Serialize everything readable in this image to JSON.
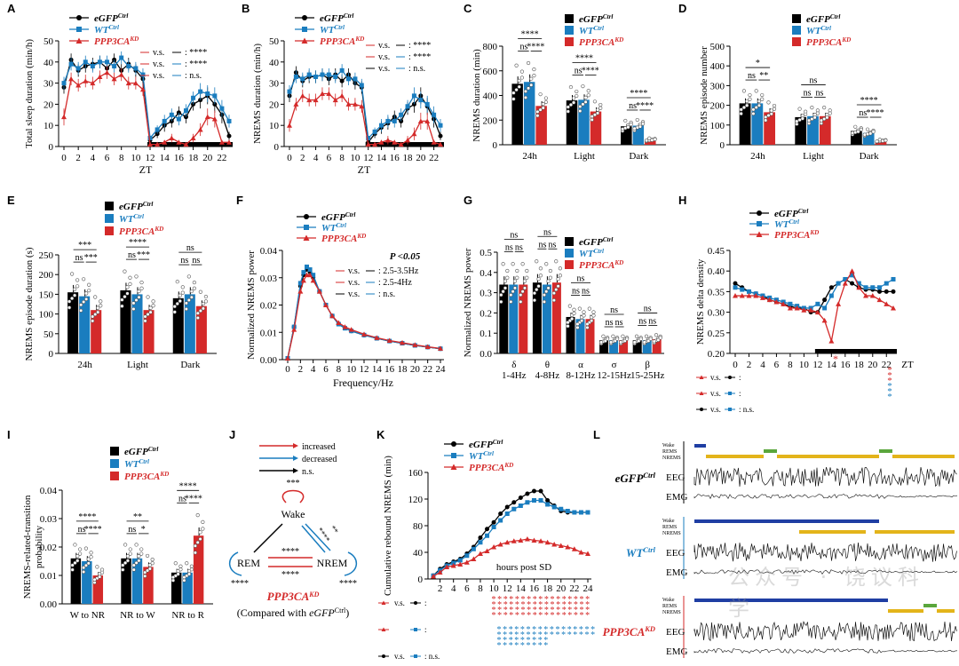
{
  "colors": {
    "egfp": "#000000",
    "wt": "#1a7dbf",
    "ppp": "#d42a2a",
    "wake": "#1f3ea3",
    "rems": "#5aa63c",
    "nrems": "#e3b41a"
  },
  "groups": [
    "eGFP",
    "WT",
    "PPP3CA"
  ],
  "group_sup": [
    "Ctrl",
    "Ctrl",
    "KD"
  ],
  "zt_ticks": [
    "0",
    "2",
    "4",
    "6",
    "8",
    "10",
    "12",
    "14",
    "16",
    "18",
    "20",
    "22"
  ],
  "zt_label": "ZT",
  "panel_letters": [
    "A",
    "B",
    "C",
    "D",
    "E",
    "F",
    "G",
    "H",
    "I",
    "J",
    "K",
    "L"
  ],
  "stats": {
    "a": [
      "v.s.",
      ":",
      "****",
      "v.s.",
      ":",
      "****",
      "v.s.",
      ":",
      "n.s."
    ],
    "f_p": "P <0.05",
    "f": [
      "v.s.",
      ": 2.5-3.5Hz",
      "v.s.",
      ": 2.5-4Hz",
      "v.s.",
      ": n.s."
    ],
    "h_star": "*",
    "k_nsd": "n.s."
  },
  "j_diagram": {
    "legend": [
      "increased",
      "decreased",
      "n.s."
    ],
    "nodes": [
      "Wake",
      "REM",
      "NREM"
    ],
    "stars": [
      "***",
      "****",
      "****",
      "****",
      "**",
      "****",
      "****"
    ],
    "title": "PPP3CA",
    "title_sup": "KD",
    "note_pre": "(Compared with ",
    "note_grp": "eGFP",
    "note_sup": "Ctrl",
    "note_post": ")"
  },
  "l_traces": {
    "stage_labels": [
      "Wake",
      "REMS",
      "NREMS"
    ],
    "eeg": "EEG",
    "emg": "EMG"
  },
  "watermark": "公众号 · 饶议科学",
  "chart_data": [
    {
      "panel": "A",
      "type": "line",
      "ylabel": "Total sleep duration (min/h)",
      "xlabel": "ZT",
      "ylim": [
        0,
        50
      ],
      "yticks": [
        0,
        10,
        20,
        30,
        40,
        50
      ],
      "x": [
        0,
        1,
        2,
        3,
        4,
        5,
        6,
        7,
        8,
        9,
        10,
        11,
        12,
        13,
        14,
        15,
        16,
        17,
        18,
        19,
        20,
        21,
        22,
        23
      ],
      "series": [
        {
          "name": "eGFP",
          "values": [
            28,
            41,
            36,
            38,
            39,
            40,
            37,
            41,
            36,
            39,
            36,
            32,
            3,
            6,
            10,
            12,
            16,
            14,
            20,
            22,
            24,
            20,
            15,
            5
          ],
          "err": [
            3,
            3,
            3,
            3,
            3,
            3,
            3,
            3,
            3,
            3,
            3,
            3,
            1,
            2,
            3,
            3,
            3,
            3,
            3,
            4,
            4,
            4,
            4,
            2
          ]
        },
        {
          "name": "WT",
          "values": [
            30,
            39,
            37,
            40,
            38,
            40,
            40,
            38,
            42,
            38,
            37,
            34,
            4,
            8,
            12,
            15,
            13,
            17,
            23,
            26,
            25,
            24,
            18,
            12
          ],
          "err": [
            3,
            3,
            3,
            3,
            3,
            3,
            3,
            3,
            3,
            3,
            3,
            3,
            1,
            2,
            3,
            3,
            3,
            3,
            3,
            4,
            4,
            4,
            4,
            3
          ]
        },
        {
          "name": "PPP3CA",
          "values": [
            14,
            32,
            29,
            31,
            30,
            33,
            35,
            32,
            34,
            30,
            30,
            27,
            1,
            1,
            2,
            4,
            2,
            1,
            4,
            8,
            14,
            13,
            2,
            2
          ],
          "err": [
            4,
            3,
            3,
            3,
            3,
            3,
            3,
            3,
            3,
            3,
            3,
            3,
            1,
            1,
            1,
            2,
            1,
            1,
            2,
            3,
            4,
            4,
            1,
            1
          ]
        }
      ]
    },
    {
      "panel": "B",
      "type": "line",
      "ylabel": "NREMS duration (min/h)",
      "xlabel": "ZT",
      "ylim": [
        0,
        50
      ],
      "yticks": [
        0,
        10,
        20,
        30,
        40,
        50
      ],
      "x": [
        0,
        1,
        2,
        3,
        4,
        5,
        6,
        7,
        8,
        9,
        10,
        11,
        12,
        13,
        14,
        15,
        16,
        17,
        18,
        19,
        20,
        21,
        22,
        23
      ],
      "series": [
        {
          "name": "eGFP",
          "values": [
            24,
            35,
            31,
            33,
            33,
            34,
            32,
            34,
            31,
            34,
            30,
            28,
            2,
            6,
            9,
            11,
            14,
            12,
            18,
            20,
            24,
            19,
            13,
            5
          ],
          "err": [
            3,
            3,
            3,
            3,
            3,
            3,
            3,
            3,
            3,
            3,
            3,
            3,
            1,
            2,
            3,
            3,
            3,
            3,
            3,
            4,
            4,
            4,
            4,
            2
          ]
        },
        {
          "name": "WT",
          "values": [
            26,
            33,
            32,
            34,
            33,
            34,
            34,
            33,
            36,
            32,
            32,
            29,
            4,
            7,
            10,
            12,
            12,
            15,
            19,
            24,
            22,
            20,
            15,
            10
          ],
          "err": [
            3,
            3,
            3,
            3,
            3,
            3,
            3,
            3,
            3,
            3,
            3,
            3,
            1,
            2,
            3,
            3,
            3,
            3,
            3,
            4,
            4,
            4,
            4,
            3
          ]
        },
        {
          "name": "PPP3CA",
          "values": [
            10,
            20,
            24,
            22,
            22,
            25,
            25,
            22,
            24,
            20,
            20,
            19,
            1,
            1,
            2,
            3,
            2,
            1,
            3,
            6,
            12,
            12,
            2,
            1
          ],
          "err": [
            3,
            3,
            3,
            3,
            3,
            3,
            3,
            3,
            3,
            3,
            3,
            3,
            1,
            1,
            1,
            2,
            1,
            1,
            2,
            3,
            4,
            4,
            1,
            1
          ]
        }
      ]
    },
    {
      "panel": "C",
      "type": "bar",
      "ylabel": "NREMS duration (min)",
      "categories": [
        "24h",
        "Light",
        "Dark"
      ],
      "ylim": [
        0,
        800
      ],
      "yticks": [
        0,
        200,
        400,
        600,
        800
      ],
      "series": [
        {
          "name": "eGFP",
          "values": [
            495,
            360,
            150
          ]
        },
        {
          "name": "WT",
          "values": [
            510,
            365,
            155
          ]
        },
        {
          "name": "PPP3CA",
          "values": [
            315,
            270,
            40
          ]
        }
      ],
      "sig": [
        [
          "****",
          "ns",
          "****"
        ],
        [
          "****",
          "ns",
          "****"
        ],
        [
          "****",
          "ns",
          "****"
        ]
      ]
    },
    {
      "panel": "D",
      "type": "bar",
      "ylabel": "NREMS episode number",
      "categories": [
        "24h",
        "Light",
        "Dark"
      ],
      "ylim": [
        0,
        500
      ],
      "yticks": [
        0,
        100,
        200,
        300,
        400,
        500
      ],
      "series": [
        {
          "name": "eGFP",
          "values": [
            210,
            140,
            70
          ]
        },
        {
          "name": "WT",
          "values": [
            210,
            145,
            60
          ]
        },
        {
          "name": "PPP3CA",
          "values": [
            165,
            145,
            20
          ]
        }
      ],
      "sig": [
        [
          "*",
          "ns",
          "**"
        ],
        [
          "ns",
          "ns",
          "ns"
        ],
        [
          "****",
          "ns",
          "****"
        ]
      ]
    },
    {
      "panel": "E",
      "type": "bar",
      "ylabel": "NREMS episode duration (s)",
      "categories": [
        "24h",
        "Light",
        "Dark"
      ],
      "ylim": [
        0,
        250
      ],
      "yticks": [
        0,
        50,
        100,
        150,
        200,
        250
      ],
      "series": [
        {
          "name": "eGFP",
          "values": [
            155,
            160,
            140
          ]
        },
        {
          "name": "WT",
          "values": [
            145,
            150,
            150
          ]
        },
        {
          "name": "PPP3CA",
          "values": [
            110,
            110,
            120
          ]
        }
      ],
      "sig": [
        [
          "***",
          "ns",
          "***"
        ],
        [
          "****",
          "ns",
          "***"
        ],
        [
          "ns",
          "ns",
          "ns"
        ]
      ]
    },
    {
      "panel": "F",
      "type": "line",
      "ylabel": "Normalized NREMS power",
      "xlabel": "Frequency/Hz",
      "ylim": [
        0,
        0.04
      ],
      "yticks": [
        0.0,
        0.01,
        0.02,
        0.03,
        0.04
      ],
      "xticks": [
        0,
        2,
        4,
        6,
        8,
        10,
        12,
        14,
        16,
        18,
        20,
        22,
        24
      ],
      "x": [
        0,
        1,
        2,
        2.5,
        3,
        3.5,
        4,
        5,
        6,
        7,
        8,
        9,
        10,
        12,
        14,
        16,
        18,
        20,
        22,
        24
      ],
      "series": [
        {
          "name": "eGFP",
          "values": [
            0.0005,
            0.012,
            0.027,
            0.031,
            0.033,
            0.032,
            0.03,
            0.025,
            0.02,
            0.016,
            0.013,
            0.0115,
            0.0105,
            0.009,
            0.0078,
            0.0068,
            0.006,
            0.0052,
            0.0046,
            0.004
          ]
        },
        {
          "name": "WT",
          "values": [
            0.0005,
            0.012,
            0.028,
            0.032,
            0.034,
            0.033,
            0.031,
            0.025,
            0.02,
            0.016,
            0.013,
            0.0115,
            0.0105,
            0.009,
            0.0078,
            0.0068,
            0.006,
            0.0052,
            0.0046,
            0.004
          ]
        },
        {
          "name": "PPP3CA",
          "values": [
            0.0005,
            0.011,
            0.025,
            0.029,
            0.031,
            0.031,
            0.029,
            0.025,
            0.02,
            0.016,
            0.0135,
            0.012,
            0.011,
            0.0093,
            0.008,
            0.007,
            0.0062,
            0.0054,
            0.0047,
            0.0041
          ]
        }
      ]
    },
    {
      "panel": "G",
      "type": "bar",
      "ylabel": "Normalized NREMS power",
      "categories": [
        "δ\n1-4Hz",
        "θ\n4-8Hz",
        "α\n8-12Hz",
        "σ\n12-15Hz",
        "β\n15-25Hz"
      ],
      "ylim": [
        0,
        0.5
      ],
      "yticks": [
        0.0,
        0.1,
        0.2,
        0.3,
        0.4,
        0.5
      ],
      "series": [
        {
          "name": "eGFP",
          "values": [
            0.34,
            0.35,
            0.18,
            0.065,
            0.065
          ]
        },
        {
          "name": "WT",
          "values": [
            0.34,
            0.34,
            0.17,
            0.065,
            0.065
          ]
        },
        {
          "name": "PPP3CA",
          "values": [
            0.34,
            0.35,
            0.17,
            0.065,
            0.07
          ]
        }
      ],
      "sig": [
        [
          "ns",
          "ns",
          "ns"
        ],
        [
          "ns",
          "ns",
          "ns"
        ],
        [
          "ns",
          "ns",
          "ns"
        ],
        [
          "ns",
          "ns",
          "ns"
        ],
        [
          "ns",
          "ns",
          "ns"
        ]
      ]
    },
    {
      "panel": "H",
      "type": "line",
      "ylabel": "NREMS delta density",
      "xlabel": "ZT",
      "ylim": [
        0.2,
        0.45
      ],
      "yticks": [
        0.2,
        0.25,
        0.3,
        0.35,
        0.4,
        0.45
      ],
      "x": [
        0,
        1,
        2,
        3,
        4,
        5,
        6,
        7,
        8,
        9,
        10,
        11,
        12,
        13,
        14,
        15,
        16,
        17,
        18,
        19,
        20,
        21,
        22,
        23
      ],
      "series": [
        {
          "name": "eGFP",
          "values": [
            0.37,
            0.36,
            0.35,
            0.345,
            0.34,
            0.33,
            0.325,
            0.32,
            0.315,
            0.31,
            0.31,
            0.3,
            0.3,
            0.33,
            0.36,
            0.37,
            0.38,
            0.37,
            0.36,
            0.355,
            0.355,
            0.35,
            0.35,
            0.35
          ]
        },
        {
          "name": "WT",
          "values": [
            0.36,
            0.355,
            0.35,
            0.345,
            0.34,
            0.335,
            0.33,
            0.325,
            0.32,
            0.315,
            0.31,
            0.31,
            0.32,
            0.31,
            0.34,
            0.37,
            0.38,
            0.39,
            0.37,
            0.36,
            0.36,
            0.36,
            0.37,
            0.38
          ]
        },
        {
          "name": "PPP3CA",
          "values": [
            0.34,
            0.34,
            0.34,
            0.34,
            0.335,
            0.33,
            0.325,
            0.32,
            0.31,
            0.31,
            0.305,
            0.305,
            0.3,
            0.28,
            0.23,
            0.32,
            0.37,
            0.4,
            0.36,
            0.34,
            0.34,
            0.33,
            0.32,
            0.31
          ]
        }
      ]
    },
    {
      "panel": "I",
      "type": "bar",
      "ylabel": "NREMS-related-transition\nprobability",
      "categories": [
        "W to NR",
        "NR to W",
        "NR to R"
      ],
      "ylim": [
        0,
        0.04
      ],
      "yticks": [
        0.0,
        0.01,
        0.02,
        0.03,
        0.04
      ],
      "series": [
        {
          "name": "eGFP",
          "values": [
            0.016,
            0.016,
            0.011
          ]
        },
        {
          "name": "WT",
          "values": [
            0.015,
            0.016,
            0.011
          ]
        },
        {
          "name": "PPP3CA",
          "values": [
            0.01,
            0.013,
            0.024
          ]
        }
      ],
      "sig": [
        [
          "****",
          "ns",
          "****"
        ],
        [
          "**",
          "ns",
          "*"
        ],
        [
          "****",
          "ns",
          "****"
        ]
      ]
    },
    {
      "panel": "K",
      "type": "line",
      "ylabel": "Cumulative rebound NREMS (min)",
      "xlabel": "hours post SD",
      "ylim": [
        0,
        160
      ],
      "yticks": [
        0,
        40,
        80,
        120,
        160
      ],
      "xticks": [
        2,
        4,
        6,
        8,
        10,
        12,
        14,
        16,
        18,
        20,
        22,
        24
      ],
      "x": [
        1,
        2,
        3,
        4,
        5,
        6,
        7,
        8,
        9,
        10,
        11,
        12,
        13,
        14,
        15,
        16,
        17,
        18,
        19,
        20,
        21,
        22,
        23,
        24
      ],
      "series": [
        {
          "name": "eGFP",
          "values": [
            5,
            15,
            22,
            26,
            30,
            38,
            48,
            62,
            75,
            85,
            98,
            108,
            115,
            122,
            128,
            132,
            132,
            118,
            110,
            102,
            100,
            100,
            100,
            100
          ]
        },
        {
          "name": "WT",
          "values": [
            5,
            13,
            20,
            24,
            28,
            35,
            45,
            55,
            65,
            78,
            88,
            98,
            105,
            110,
            115,
            118,
            118,
            112,
            108,
            105,
            102,
            100,
            100,
            100
          ]
        },
        {
          "name": "PPP3CA",
          "values": [
            4,
            10,
            18,
            20,
            22,
            25,
            30,
            38,
            42,
            48,
            52,
            55,
            57,
            58,
            60,
            58,
            57,
            55,
            52,
            50,
            48,
            45,
            40,
            38
          ]
        }
      ]
    }
  ]
}
